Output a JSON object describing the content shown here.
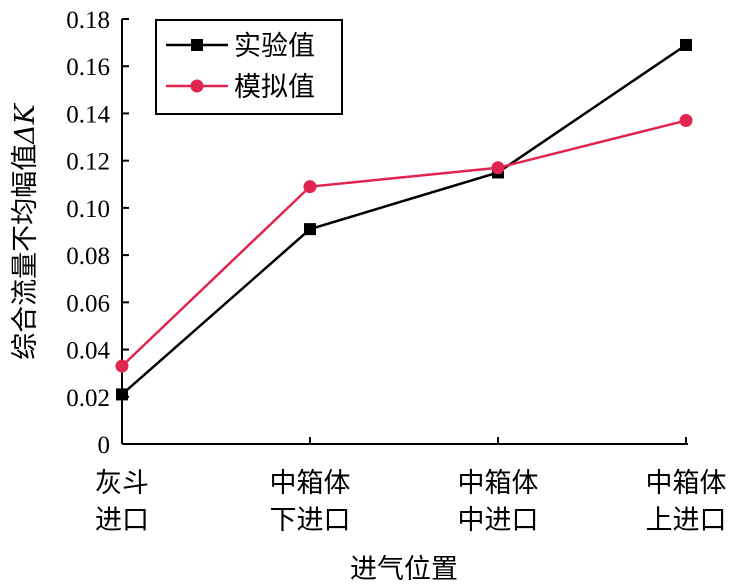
{
  "chart_data": {
    "type": "line",
    "categories": [
      [
        "灰斗",
        "进口"
      ],
      [
        "中箱体",
        "下进口"
      ],
      [
        "中箱体",
        "中进口"
      ],
      [
        "中箱体",
        "上进口"
      ]
    ],
    "series": [
      {
        "name": "实验值",
        "values": [
          0.021,
          0.091,
          0.115,
          0.169
        ],
        "color": "#000000",
        "marker": "square"
      },
      {
        "name": "模拟值",
        "values": [
          0.033,
          0.109,
          0.117,
          0.137
        ],
        "color": "#e0264f",
        "marker": "circle"
      }
    ],
    "xlabel": "进气位置",
    "ylabel_main": "综合流量不均幅值",
    "ylabel_symbol": "ΔK",
    "ylim": [
      0,
      0.18
    ],
    "yticks": [
      "0",
      "0.02",
      "0.04",
      "0.06",
      "0.08",
      "0.10",
      "0.12",
      "0.14",
      "0.16",
      "0.18"
    ],
    "legend_position": "top-left",
    "grid": false
  }
}
